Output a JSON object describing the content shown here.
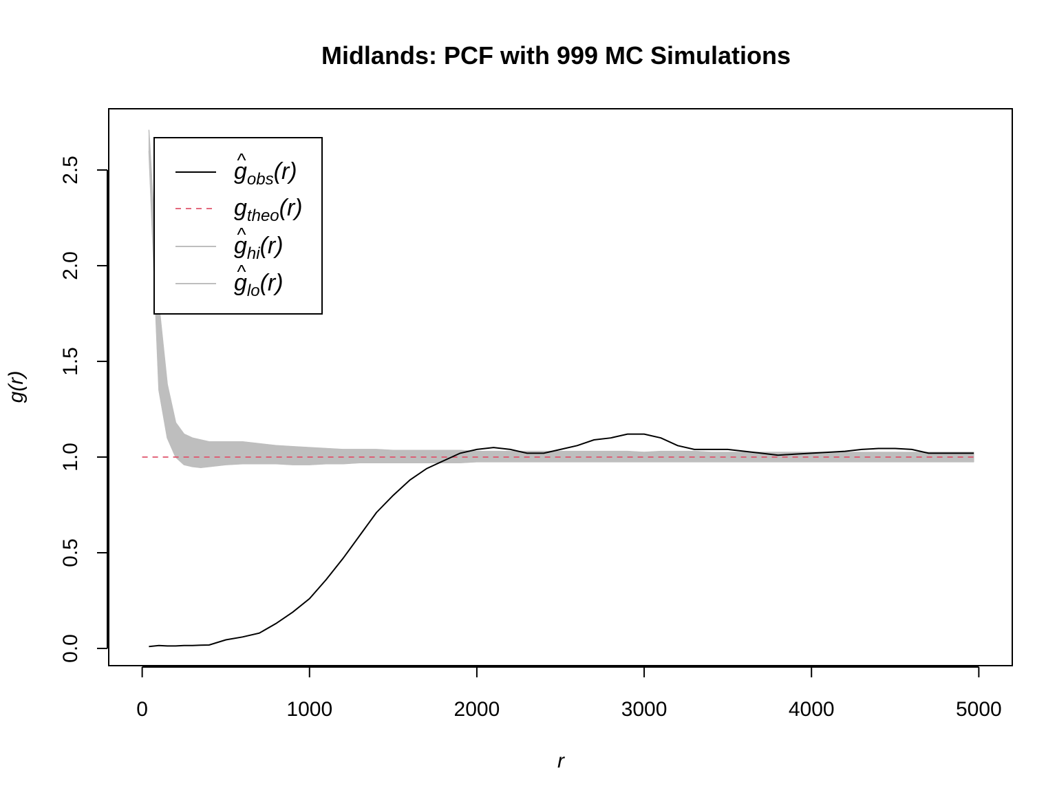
{
  "chart_data": {
    "type": "line",
    "title": "Midlands: PCF with 999 MC Simulations",
    "xlabel": "r",
    "ylabel_main": "g",
    "ylabel_arg": "(r)",
    "xlim": [
      -200,
      5200
    ],
    "ylim": [
      -0.09,
      2.82
    ],
    "x_ticks": [
      0,
      1000,
      2000,
      3000,
      4000,
      5000
    ],
    "x_tick_labels": [
      "0",
      "1000",
      "2000",
      "3000",
      "4000",
      "5000"
    ],
    "y_ticks": [
      0.0,
      0.5,
      1.0,
      1.5,
      2.0,
      2.5
    ],
    "y_tick_labels": [
      "0.0",
      "0.5",
      "1.0",
      "1.5",
      "2.0",
      "2.5"
    ],
    "legend_position": "top-left",
    "colors": {
      "obs": "#000000",
      "theo": "#DF536B",
      "envelope": "#BEBEBE"
    },
    "legend": [
      {
        "key": "obs",
        "main": "g",
        "hat": "^",
        "sub": "obs",
        "arg": "(r)",
        "style": "solid",
        "color": "#000000"
      },
      {
        "key": "theo",
        "main": "g",
        "hat": "",
        "sub": "theo",
        "arg": "(r)",
        "style": "dashed",
        "color": "#DF536B"
      },
      {
        "key": "hi",
        "main": "g",
        "hat": "^",
        "sub": "hi",
        "arg": "(r)",
        "style": "solid",
        "color": "#BEBEBE"
      },
      {
        "key": "lo",
        "main": "g",
        "hat": "^",
        "sub": "lo",
        "arg": "(r)",
        "style": "solid",
        "color": "#BEBEBE"
      }
    ],
    "r": [
      40,
      100,
      150,
      200,
      250,
      300,
      350,
      400,
      500,
      600,
      700,
      800,
      900,
      1000,
      1100,
      1200,
      1300,
      1400,
      1500,
      1600,
      1700,
      1800,
      1900,
      2000,
      2100,
      2200,
      2300,
      2400,
      2500,
      2600,
      2700,
      2800,
      2900,
      3000,
      3100,
      3200,
      3300,
      3400,
      3500,
      3600,
      3700,
      3800,
      3900,
      4000,
      4100,
      4200,
      4300,
      4400,
      4500,
      4600,
      4700,
      4800,
      4900,
      4970
    ],
    "series": [
      {
        "key": "obs",
        "values": [
          0.01,
          0.015,
          0.013,
          0.013,
          0.015,
          0.015,
          0.017,
          0.018,
          0.045,
          0.06,
          0.08,
          0.13,
          0.19,
          0.26,
          0.36,
          0.47,
          0.59,
          0.71,
          0.8,
          0.88,
          0.94,
          0.98,
          1.02,
          1.04,
          1.05,
          1.04,
          1.02,
          1.02,
          1.04,
          1.06,
          1.09,
          1.1,
          1.12,
          1.12,
          1.1,
          1.06,
          1.04,
          1.04,
          1.04,
          1.03,
          1.02,
          1.01,
          1.015,
          1.02,
          1.025,
          1.03,
          1.04,
          1.045,
          1.045,
          1.04,
          1.02,
          1.02,
          1.02,
          1.02
        ]
      },
      {
        "key": "hi",
        "values": [
          2.71,
          1.8,
          1.38,
          1.18,
          1.12,
          1.1,
          1.09,
          1.08,
          1.08,
          1.08,
          1.07,
          1.06,
          1.055,
          1.05,
          1.045,
          1.04,
          1.04,
          1.04,
          1.035,
          1.035,
          1.035,
          1.035,
          1.035,
          1.03,
          1.03,
          1.03,
          1.03,
          1.03,
          1.03,
          1.03,
          1.03,
          1.03,
          1.03,
          1.025,
          1.03,
          1.03,
          1.03,
          1.025,
          1.025,
          1.025,
          1.025,
          1.025,
          1.025,
          1.025,
          1.025,
          1.025,
          1.025,
          1.025,
          1.025,
          1.025,
          1.025,
          1.025,
          1.025,
          1.025
        ]
      },
      {
        "key": "lo",
        "values": [
          2.6,
          1.35,
          1.1,
          1.0,
          0.96,
          0.95,
          0.945,
          0.95,
          0.96,
          0.965,
          0.965,
          0.965,
          0.96,
          0.96,
          0.965,
          0.965,
          0.97,
          0.97,
          0.97,
          0.97,
          0.97,
          0.97,
          0.97,
          0.975,
          0.975,
          0.975,
          0.975,
          0.975,
          0.975,
          0.975,
          0.975,
          0.975,
          0.975,
          0.975,
          0.975,
          0.975,
          0.975,
          0.975,
          0.975,
          0.975,
          0.975,
          0.975,
          0.975,
          0.975,
          0.975,
          0.975,
          0.975,
          0.975,
          0.975,
          0.975,
          0.975,
          0.975,
          0.975,
          0.975
        ]
      },
      {
        "key": "theo",
        "values": [
          1,
          1
        ]
      }
    ],
    "theo_r": [
      0,
      4970
    ]
  }
}
